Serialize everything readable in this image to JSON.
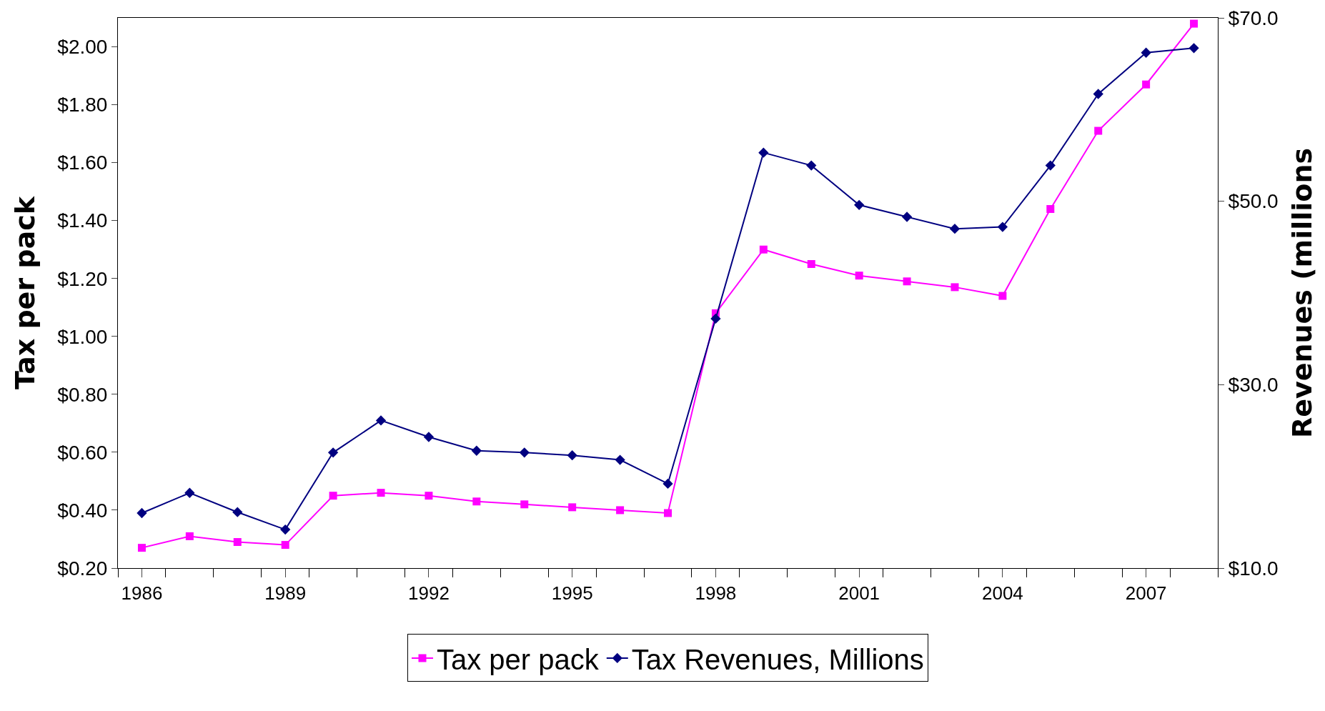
{
  "chart_data": {
    "type": "line",
    "ylabel": "Tax per pack",
    "y2label": "Revenues (millions",
    "x": [
      1986,
      1987,
      1988,
      1989,
      1990,
      1991,
      1992,
      1993,
      1994,
      1995,
      1996,
      1997,
      1998,
      1999,
      2000,
      2001,
      2002,
      2003,
      2004,
      2005,
      2006,
      2007,
      2008
    ],
    "series": [
      {
        "name": "Tax per pack",
        "color": "#ff00ff",
        "marker": "square",
        "values": [
          0.27,
          0.31,
          0.29,
          0.28,
          0.45,
          0.46,
          0.45,
          0.43,
          0.42,
          0.41,
          0.4,
          0.39,
          1.08,
          1.3,
          1.25,
          1.21,
          1.19,
          1.17,
          1.14,
          1.44,
          1.71,
          1.87,
          2.08
        ]
      },
      {
        "name": "Tax Revenues, Millions",
        "color": "#000080",
        "marker": "diamond",
        "axis": "y2",
        "values": [
          16.0,
          18.2,
          16.1,
          14.2,
          22.6,
          26.1,
          24.3,
          22.8,
          22.6,
          22.3,
          21.8,
          19.2,
          37.2,
          55.3,
          53.9,
          49.6,
          48.3,
          47.0,
          47.2,
          53.9,
          61.7,
          66.2,
          66.7
        ]
      }
    ],
    "xlim": [
      1985.5,
      2008.5
    ],
    "xticks": [
      1986,
      1989,
      1992,
      1995,
      1998,
      2001,
      2004,
      2007
    ],
    "ylim": [
      0.2,
      2.1
    ],
    "yticks": [
      {
        "value": 0.2,
        "label": "$0.20"
      },
      {
        "value": 0.4,
        "label": "$0.40"
      },
      {
        "value": 0.6,
        "label": "$0.60"
      },
      {
        "value": 0.8,
        "label": "$0.80"
      },
      {
        "value": 1.0,
        "label": "$1.00"
      },
      {
        "value": 1.2,
        "label": "$1.20"
      },
      {
        "value": 1.4,
        "label": "$1.40"
      },
      {
        "value": 1.6,
        "label": "$1.60"
      },
      {
        "value": 1.8,
        "label": "$1.80"
      },
      {
        "value": 2.0,
        "label": "$2.00"
      }
    ],
    "y2lim": [
      10,
      70
    ],
    "y2ticks": [
      {
        "value": 10,
        "label": "$10.0"
      },
      {
        "value": 30,
        "label": "$30.0"
      },
      {
        "value": 50,
        "label": "$50.0"
      },
      {
        "value": 70,
        "label": "$70.0"
      }
    ],
    "grid": false,
    "legend": "bottom",
    "line_style": "solid"
  }
}
